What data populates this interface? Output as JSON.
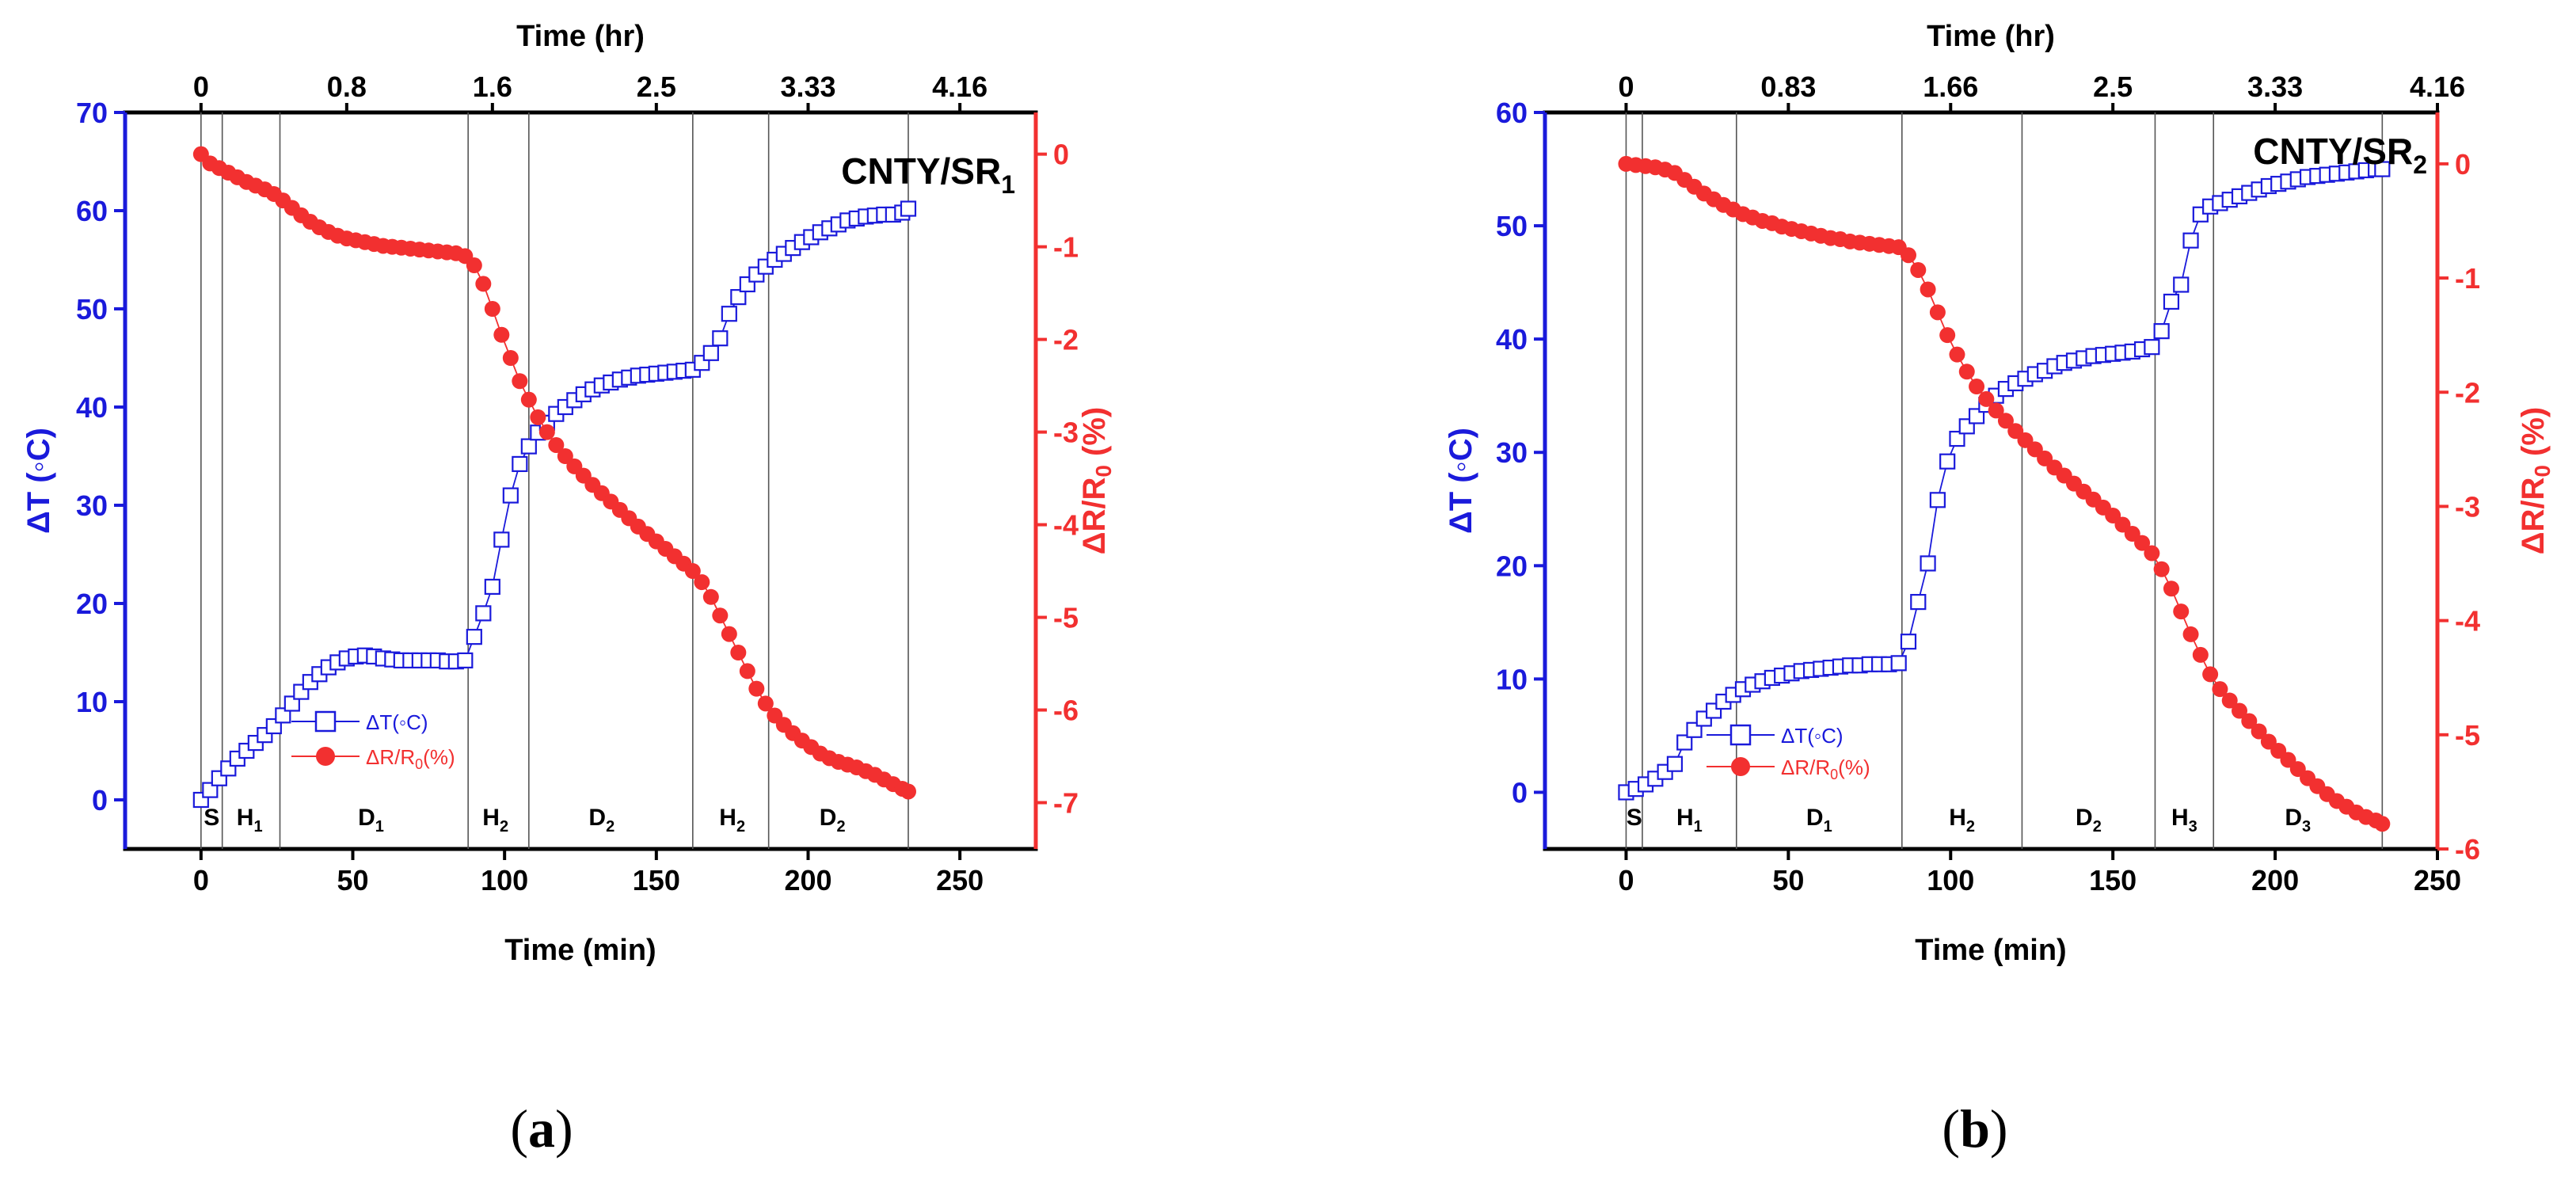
{
  "colors": {
    "blue": "#1a1adb",
    "red": "#f23030",
    "black": "#000000",
    "vline": "#555555"
  },
  "chart_data": [
    {
      "type": "line",
      "panel_label": "a",
      "title": "CNTY/SR",
      "title_sub": "1",
      "xlabel": "Time (min)",
      "xlabel_top": "Time (hr)",
      "ylabel": "ΔT (◦C)",
      "ylabel_right": "ΔR/R",
      "ylabel_right_sub": "0",
      "ylabel_right_suffix": " (%)",
      "xlim": [
        -25,
        275
      ],
      "ylim": [
        -5,
        70
      ],
      "ylim_right": [
        -7.5,
        0.45
      ],
      "xticks": [
        0,
        50,
        100,
        150,
        200,
        250
      ],
      "yticks": [
        0,
        10,
        20,
        30,
        40,
        50,
        60,
        70
      ],
      "yticks_right": [
        0,
        -1,
        -2,
        -3,
        -4,
        -5,
        -6,
        -7
      ],
      "top_ticks": [
        {
          "x": 0,
          "label": "0"
        },
        {
          "x": 48,
          "label": "0.8"
        },
        {
          "x": 96,
          "label": "1.6"
        },
        {
          "x": 150,
          "label": "2.5"
        },
        {
          "x": 200,
          "label": "3.33"
        },
        {
          "x": 250,
          "label": "4.16"
        }
      ],
      "phase_lines": [
        0,
        7,
        26,
        88,
        108,
        162,
        187,
        233
      ],
      "phases": [
        {
          "x": 3.5,
          "label": "S",
          "sub": ""
        },
        {
          "x": 16,
          "label": "H",
          "sub": "1"
        },
        {
          "x": 56,
          "label": "D",
          "sub": "1"
        },
        {
          "x": 97,
          "label": "H",
          "sub": "2"
        },
        {
          "x": 132,
          "label": "D",
          "sub": "2"
        },
        {
          "x": 175,
          "label": "H",
          "sub": "2"
        },
        {
          "x": 208,
          "label": "D",
          "sub": "2"
        }
      ],
      "legend": {
        "position": "lower-left",
        "series1": "ΔT(◦C)",
        "series2_main": "ΔR/R",
        "series2_sub": "0",
        "series2_suffix": "(%)"
      },
      "series": [
        {
          "name": "ΔT(◦C)",
          "axis": "left",
          "marker": "open-square",
          "x": [
            0,
            3,
            6,
            9,
            12,
            15,
            18,
            21,
            24,
            27,
            30,
            33,
            36,
            39,
            42,
            45,
            48,
            51,
            54,
            57,
            60,
            63,
            66,
            69,
            72,
            75,
            78,
            81,
            84,
            87,
            90,
            93,
            96,
            99,
            102,
            105,
            108,
            111,
            114,
            117,
            120,
            123,
            126,
            129,
            132,
            135,
            138,
            141,
            144,
            147,
            150,
            153,
            156,
            159,
            162,
            165,
            168,
            171,
            174,
            177,
            180,
            183,
            186,
            189,
            192,
            195,
            198,
            201,
            204,
            207,
            210,
            213,
            216,
            219,
            222,
            225,
            228,
            231,
            233
          ],
          "values": [
            0,
            1,
            2.2,
            3.2,
            4.2,
            5,
            5.8,
            6.6,
            7.5,
            8.6,
            9.8,
            11,
            12,
            12.8,
            13.5,
            14,
            14.4,
            14.6,
            14.7,
            14.6,
            14.4,
            14.3,
            14.2,
            14.2,
            14.2,
            14.2,
            14.2,
            14.1,
            14.1,
            14.2,
            16.6,
            19,
            21.7,
            26.5,
            31,
            34.2,
            36,
            37.4,
            38.4,
            39.3,
            40,
            40.7,
            41.3,
            41.8,
            42.2,
            42.5,
            42.8,
            43,
            43.2,
            43.3,
            43.4,
            43.5,
            43.6,
            43.7,
            43.8,
            44.5,
            45.5,
            47,
            49.5,
            51.2,
            52.5,
            53.5,
            54.3,
            55,
            55.6,
            56.2,
            56.8,
            57.3,
            57.8,
            58.2,
            58.6,
            59,
            59.2,
            59.4,
            59.5,
            59.6,
            59.6,
            59.8,
            60.2
          ]
        },
        {
          "name": "ΔR/R0(%)",
          "axis": "right",
          "marker": "filled-circle",
          "x": [
            0,
            3,
            6,
            9,
            12,
            15,
            18,
            21,
            24,
            27,
            30,
            33,
            36,
            39,
            42,
            45,
            48,
            51,
            54,
            57,
            60,
            63,
            66,
            69,
            72,
            75,
            78,
            81,
            84,
            87,
            90,
            93,
            96,
            99,
            102,
            105,
            108,
            111,
            114,
            117,
            120,
            123,
            126,
            129,
            132,
            135,
            138,
            141,
            144,
            147,
            150,
            153,
            156,
            159,
            162,
            165,
            168,
            171,
            174,
            177,
            180,
            183,
            186,
            189,
            192,
            195,
            198,
            201,
            204,
            207,
            210,
            213,
            216,
            219,
            222,
            225,
            228,
            231,
            233
          ],
          "values": [
            0,
            -0.1,
            -0.15,
            -0.2,
            -0.25,
            -0.3,
            -0.34,
            -0.38,
            -0.43,
            -0.5,
            -0.58,
            -0.66,
            -0.73,
            -0.79,
            -0.84,
            -0.88,
            -0.91,
            -0.93,
            -0.95,
            -0.97,
            -0.99,
            -1.0,
            -1.01,
            -1.02,
            -1.03,
            -1.04,
            -1.05,
            -1.06,
            -1.07,
            -1.1,
            -1.2,
            -1.4,
            -1.67,
            -1.95,
            -2.2,
            -2.45,
            -2.65,
            -2.84,
            -3.0,
            -3.14,
            -3.26,
            -3.37,
            -3.47,
            -3.57,
            -3.66,
            -3.75,
            -3.84,
            -3.93,
            -4.02,
            -4.1,
            -4.18,
            -4.26,
            -4.34,
            -4.42,
            -4.5,
            -4.62,
            -4.78,
            -4.98,
            -5.18,
            -5.38,
            -5.58,
            -5.77,
            -5.93,
            -6.06,
            -6.16,
            -6.25,
            -6.33,
            -6.4,
            -6.47,
            -6.52,
            -6.56,
            -6.59,
            -6.62,
            -6.66,
            -6.7,
            -6.75,
            -6.8,
            -6.85,
            -6.88
          ]
        }
      ]
    },
    {
      "type": "line",
      "panel_label": "b",
      "title": "CNTY/SR",
      "title_sub": "2",
      "xlabel": "Time (min)",
      "xlabel_top": "Time (hr)",
      "ylabel": "ΔT (◦C)",
      "ylabel_right": "ΔR/R",
      "ylabel_right_sub": "0",
      "ylabel_right_suffix": " (%)",
      "xlim": [
        -25,
        250
      ],
      "ylim": [
        -5,
        60
      ],
      "ylim_right": [
        -6,
        0.45
      ],
      "xticks": [
        0,
        50,
        100,
        150,
        200,
        250
      ],
      "yticks": [
        0,
        10,
        20,
        30,
        40,
        50,
        60
      ],
      "yticks_right": [
        0,
        -1,
        -2,
        -3,
        -4,
        -5,
        -6
      ],
      "top_ticks": [
        {
          "x": 0,
          "label": "0"
        },
        {
          "x": 50,
          "label": "0.83"
        },
        {
          "x": 100,
          "label": "1.66"
        },
        {
          "x": 150,
          "label": "2.5"
        },
        {
          "x": 200,
          "label": "3.33"
        },
        {
          "x": 250,
          "label": "4.16"
        }
      ],
      "phase_lines": [
        0,
        5,
        34,
        85,
        122,
        163,
        181,
        233
      ],
      "phases": [
        {
          "x": 2.5,
          "label": "S",
          "sub": ""
        },
        {
          "x": 19.5,
          "label": "H",
          "sub": "1"
        },
        {
          "x": 59.5,
          "label": "D",
          "sub": "1"
        },
        {
          "x": 103.5,
          "label": "H",
          "sub": "2"
        },
        {
          "x": 142.5,
          "label": "D",
          "sub": "2"
        },
        {
          "x": 172,
          "label": "H",
          "sub": "3"
        },
        {
          "x": 207,
          "label": "D",
          "sub": "3"
        }
      ],
      "legend": {
        "position": "lower-left",
        "series1": "ΔT(◦C)",
        "series2_main": "ΔR/R",
        "series2_sub": "0",
        "series2_suffix": "(%)"
      },
      "series": [
        {
          "name": "ΔT(◦C)",
          "axis": "left",
          "marker": "open-square",
          "x": [
            0,
            3,
            6,
            9,
            12,
            15,
            18,
            21,
            24,
            27,
            30,
            33,
            36,
            39,
            42,
            45,
            48,
            51,
            54,
            57,
            60,
            63,
            66,
            69,
            72,
            75,
            78,
            81,
            84,
            87,
            90,
            93,
            96,
            99,
            102,
            105,
            108,
            111,
            114,
            117,
            120,
            123,
            126,
            129,
            132,
            135,
            138,
            141,
            144,
            147,
            150,
            153,
            156,
            159,
            162,
            165,
            168,
            171,
            174,
            177,
            180,
            183,
            186,
            189,
            192,
            195,
            198,
            201,
            204,
            207,
            210,
            213,
            216,
            219,
            222,
            225,
            228,
            231,
            233
          ],
          "values": [
            0,
            0.3,
            0.7,
            1.2,
            1.8,
            2.5,
            4.4,
            5.5,
            6.5,
            7.2,
            8,
            8.6,
            9.1,
            9.5,
            9.8,
            10.1,
            10.3,
            10.5,
            10.7,
            10.8,
            10.9,
            11,
            11.1,
            11.2,
            11.2,
            11.3,
            11.3,
            11.3,
            11.4,
            13.3,
            16.8,
            20.2,
            25.8,
            29.2,
            31.2,
            32.3,
            33.2,
            34.2,
            35,
            35.6,
            36.1,
            36.5,
            36.9,
            37.2,
            37.6,
            37.9,
            38.1,
            38.3,
            38.5,
            38.6,
            38.7,
            38.8,
            38.9,
            39.1,
            39.3,
            40.7,
            43.3,
            44.8,
            48.7,
            51,
            51.7,
            52,
            52.3,
            52.6,
            52.9,
            53.2,
            53.5,
            53.7,
            53.9,
            54.1,
            54.3,
            54.4,
            54.5,
            54.6,
            54.7,
            54.8,
            54.9,
            55,
            55
          ]
        },
        {
          "name": "ΔR/R0(%)",
          "axis": "right",
          "marker": "filled-circle",
          "x": [
            0,
            3,
            6,
            9,
            12,
            15,
            18,
            21,
            24,
            27,
            30,
            33,
            36,
            39,
            42,
            45,
            48,
            51,
            54,
            57,
            60,
            63,
            66,
            69,
            72,
            75,
            78,
            81,
            84,
            87,
            90,
            93,
            96,
            99,
            102,
            105,
            108,
            111,
            114,
            117,
            120,
            123,
            126,
            129,
            132,
            135,
            138,
            141,
            144,
            147,
            150,
            153,
            156,
            159,
            162,
            165,
            168,
            171,
            174,
            177,
            180,
            183,
            186,
            189,
            192,
            195,
            198,
            201,
            204,
            207,
            210,
            213,
            216,
            219,
            222,
            225,
            228,
            231,
            233
          ],
          "values": [
            0,
            -0.01,
            -0.02,
            -0.03,
            -0.05,
            -0.08,
            -0.14,
            -0.2,
            -0.26,
            -0.31,
            -0.36,
            -0.4,
            -0.44,
            -0.47,
            -0.5,
            -0.52,
            -0.55,
            -0.57,
            -0.59,
            -0.61,
            -0.63,
            -0.65,
            -0.66,
            -0.68,
            -0.69,
            -0.7,
            -0.71,
            -0.72,
            -0.73,
            -0.8,
            -0.93,
            -1.1,
            -1.3,
            -1.5,
            -1.67,
            -1.82,
            -1.95,
            -2.06,
            -2.16,
            -2.25,
            -2.34,
            -2.42,
            -2.5,
            -2.58,
            -2.66,
            -2.73,
            -2.8,
            -2.87,
            -2.94,
            -3.01,
            -3.08,
            -3.16,
            -3.24,
            -3.32,
            -3.41,
            -3.55,
            -3.72,
            -3.92,
            -4.12,
            -4.3,
            -4.47,
            -4.6,
            -4.7,
            -4.79,
            -4.88,
            -4.97,
            -5.06,
            -5.14,
            -5.22,
            -5.3,
            -5.38,
            -5.45,
            -5.52,
            -5.58,
            -5.63,
            -5.68,
            -5.72,
            -5.75,
            -5.78
          ]
        }
      ]
    }
  ]
}
